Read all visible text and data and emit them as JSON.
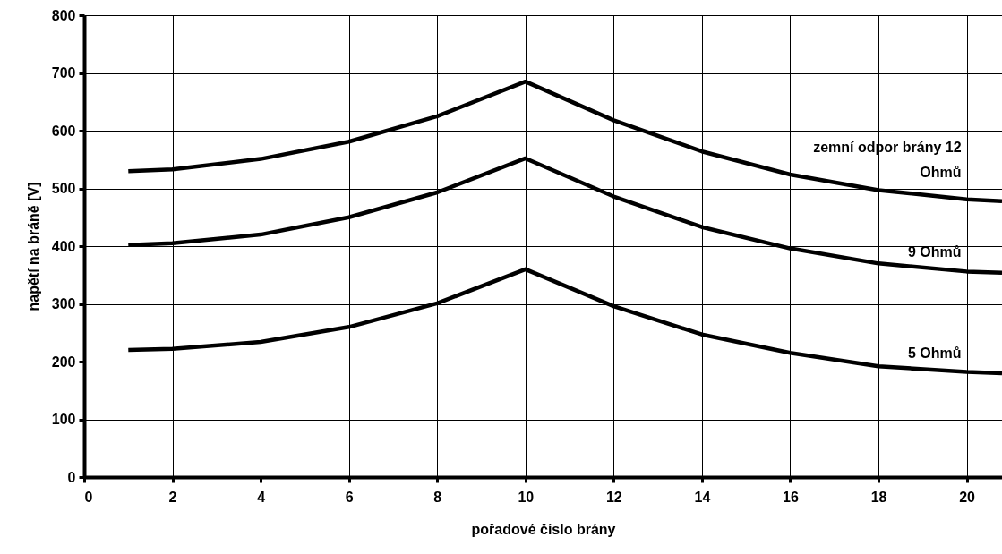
{
  "chart_data": {
    "type": "line",
    "xlabel": "pořadové číslo brány",
    "ylabel": "napětí na bráně [V]",
    "x": [
      1,
      2,
      4,
      6,
      8,
      10,
      12,
      14,
      16,
      18,
      20,
      20.8
    ],
    "series": [
      {
        "name": "zemní odpor brány 12 Ohmů",
        "color": "#000000",
        "values": [
          530,
          533,
          551,
          581,
          625,
          685,
          618,
          564,
          524,
          497,
          481,
          478
        ]
      },
      {
        "name": "9 Ohmů",
        "color": "#000000",
        "values": [
          402,
          405,
          420,
          450,
          493,
          552,
          486,
          433,
          396,
          370,
          356,
          354
        ]
      },
      {
        "name": "5 Ohmů",
        "color": "#000000",
        "values": [
          220,
          222,
          234,
          260,
          301,
          360,
          296,
          247,
          215,
          192,
          182,
          180
        ]
      }
    ],
    "xlim": [
      0,
      20.8
    ],
    "xticks": [
      0,
      2,
      4,
      6,
      8,
      10,
      12,
      14,
      16,
      18,
      20
    ],
    "ylim": [
      0,
      800
    ],
    "yticks": [
      0,
      100,
      200,
      300,
      400,
      500,
      600,
      700,
      800
    ],
    "grid": true,
    "marker": "none",
    "line_style": "solid"
  }
}
